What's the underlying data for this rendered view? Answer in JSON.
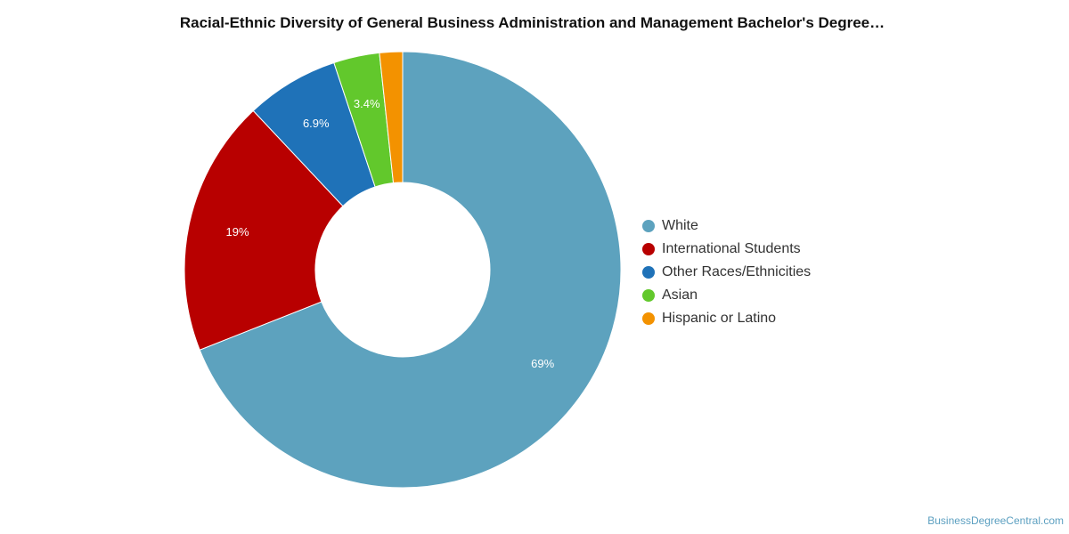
{
  "chart_data": {
    "type": "pie",
    "title": "Racial-Ethnic Diversity of General Business Administration and Management Bachelor's Degree…",
    "donut": true,
    "legend_position": "right",
    "slices": [
      {
        "label": "White",
        "value": 69,
        "display": "69%",
        "color": "#5da2be"
      },
      {
        "label": "International Students",
        "value": 19,
        "display": "19%",
        "color": "#b80000"
      },
      {
        "label": "Other Races/Ethnicities",
        "value": 6.9,
        "display": "6.9%",
        "color": "#1f72b8"
      },
      {
        "label": "Asian",
        "value": 3.4,
        "display": "3.4%",
        "color": "#62c82c"
      },
      {
        "label": "Hispanic or Latino",
        "value": 1.7,
        "display": "",
        "color": "#f39200"
      }
    ]
  },
  "watermark": "BusinessDegreeCentral.com"
}
